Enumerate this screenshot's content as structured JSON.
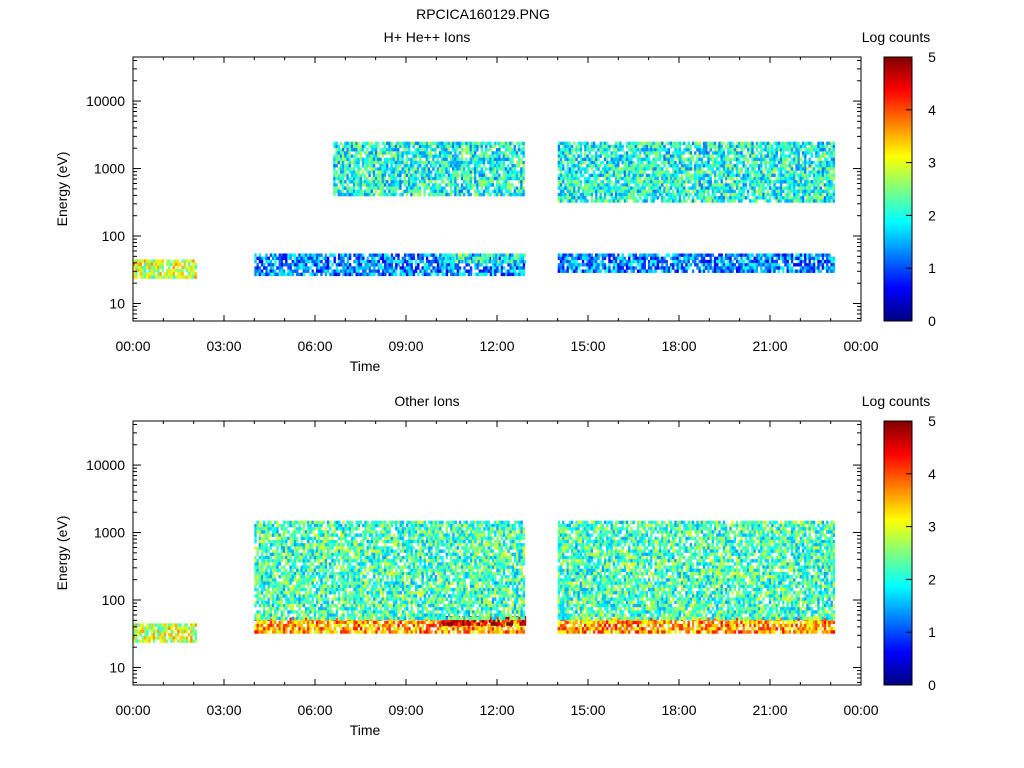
{
  "figure": {
    "title": "RPCICA160129.PNG"
  },
  "colors": {
    "colormap": [
      "#00007f",
      "#0000ff",
      "#007fff",
      "#00ffff",
      "#7fff7f",
      "#ffff00",
      "#ff7f00",
      "#ff0000",
      "#7f0000"
    ],
    "axis": "#000000",
    "background": "#ffffff"
  },
  "chart_data": [
    {
      "type": "heatmap",
      "title": "H+ He++ Ions",
      "xlabel": "Time",
      "ylabel": "Energy (eV)",
      "x_ticks": [
        "00:00",
        "03:00",
        "06:00",
        "09:00",
        "12:00",
        "15:00",
        "18:00",
        "21:00",
        "00:00"
      ],
      "xlim_hours": [
        0,
        24
      ],
      "y_scale": "log",
      "y_ticks": [
        10,
        100,
        1000,
        10000
      ],
      "y_tick_labels": [
        "10",
        "100",
        "1000",
        "10000"
      ],
      "ylim": [
        5.5,
        45000
      ],
      "colorbar": {
        "label": "Log counts",
        "ticks": [
          "0",
          "1",
          "2",
          "3",
          "4",
          "5"
        ],
        "range": [
          0,
          5
        ]
      },
      "data_gaps_hours": [
        [
          2.1,
          4.0
        ],
        [
          12.9,
          14.0
        ],
        [
          23.1,
          24.0
        ]
      ],
      "intervals": [
        {
          "start_h": 0.0,
          "end_h": 2.1,
          "e_low": 25,
          "e_high": 45,
          "level": 2.9
        },
        {
          "start_h": 4.0,
          "end_h": 12.9,
          "e_low": 28,
          "e_high": 55,
          "level": 1.3
        },
        {
          "start_h": 10.2,
          "end_h": 12.9,
          "e_low": 40,
          "e_high": 55,
          "level": 2.1
        },
        {
          "start_h": 6.6,
          "end_h": 12.9,
          "e_low": 400,
          "e_high": 2500,
          "level": 2.0
        },
        {
          "start_h": 14.0,
          "end_h": 23.1,
          "e_low": 30,
          "e_high": 55,
          "level": 1.3
        },
        {
          "start_h": 14.0,
          "end_h": 23.1,
          "e_low": 350,
          "e_high": 2500,
          "level": 2.0
        }
      ]
    },
    {
      "type": "heatmap",
      "title": "Other Ions",
      "xlabel": "Time",
      "ylabel": "Energy (eV)",
      "x_ticks": [
        "00:00",
        "03:00",
        "06:00",
        "09:00",
        "12:00",
        "15:00",
        "18:00",
        "21:00",
        "00:00"
      ],
      "xlim_hours": [
        0,
        24
      ],
      "y_scale": "log",
      "y_ticks": [
        10,
        100,
        1000,
        10000
      ],
      "y_tick_labels": [
        "10",
        "100",
        "1000",
        "10000"
      ],
      "ylim": [
        5.5,
        45000
      ],
      "colorbar": {
        "label": "Log counts",
        "ticks": [
          "0",
          "1",
          "2",
          "3",
          "4",
          "5"
        ],
        "range": [
          0,
          5
        ]
      },
      "data_gaps_hours": [
        [
          2.1,
          4.0
        ],
        [
          12.9,
          14.0
        ],
        [
          23.1,
          24.0
        ]
      ],
      "intervals": [
        {
          "start_h": 0.0,
          "end_h": 2.1,
          "e_low": 25,
          "e_high": 45,
          "level": 2.9
        },
        {
          "start_h": 4.0,
          "end_h": 12.9,
          "e_low": 35,
          "e_high": 55,
          "level": 3.6
        },
        {
          "start_h": 10.2,
          "end_h": 12.9,
          "e_low": 45,
          "e_high": 58,
          "level": 4.6
        },
        {
          "start_h": 4.0,
          "end_h": 12.9,
          "e_low": 55,
          "e_high": 1500,
          "level": 2.2
        },
        {
          "start_h": 14.0,
          "end_h": 23.1,
          "e_low": 35,
          "e_high": 55,
          "level": 3.6
        },
        {
          "start_h": 14.0,
          "end_h": 23.1,
          "e_low": 55,
          "e_high": 1500,
          "level": 2.2
        }
      ]
    }
  ]
}
